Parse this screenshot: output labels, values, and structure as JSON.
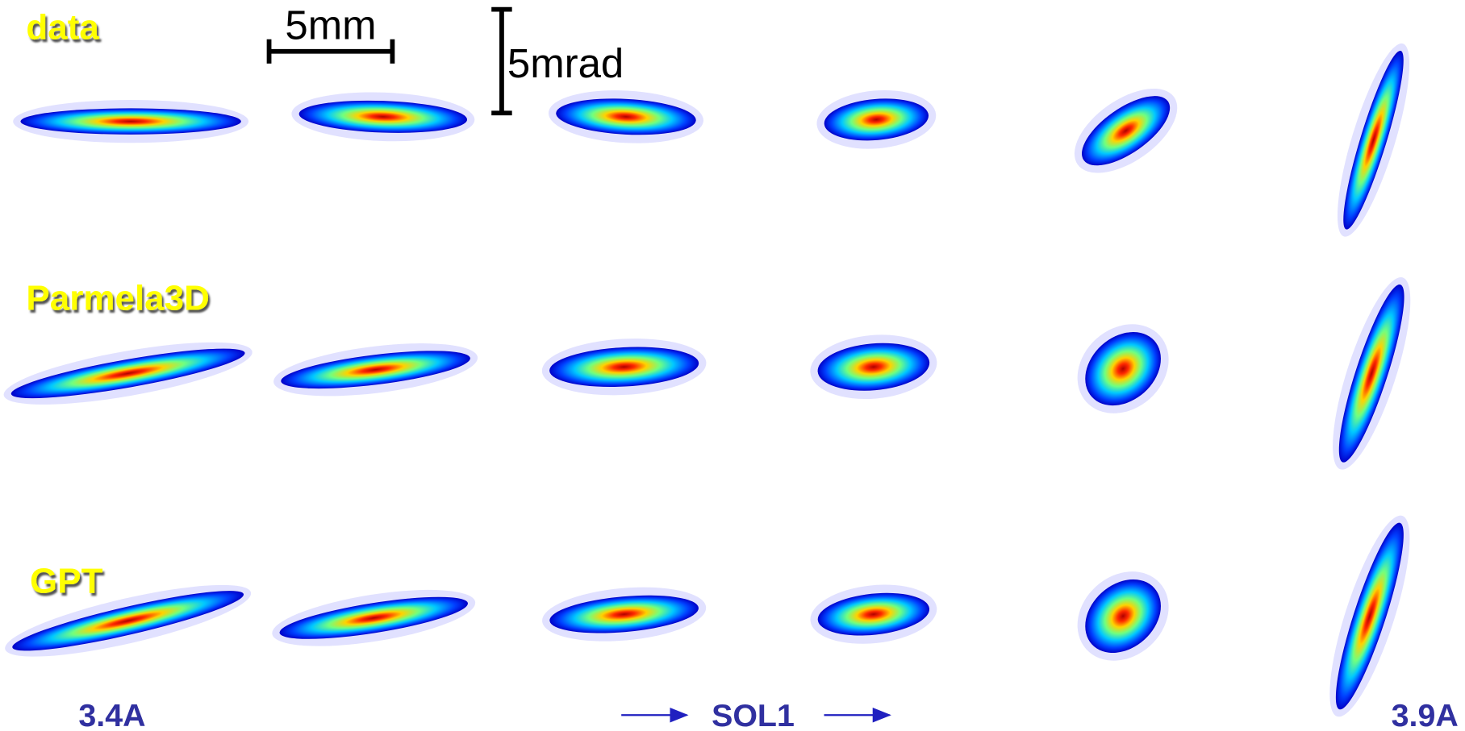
{
  "rows": [
    {
      "label": "data"
    },
    {
      "label": "Parmela3D"
    },
    {
      "label": "GPT"
    }
  ],
  "scale_bars": {
    "horizontal": "5mm",
    "vertical": "5mrad"
  },
  "scan": {
    "start": "3.4A",
    "name": "SOL1",
    "end": "3.9A"
  }
}
